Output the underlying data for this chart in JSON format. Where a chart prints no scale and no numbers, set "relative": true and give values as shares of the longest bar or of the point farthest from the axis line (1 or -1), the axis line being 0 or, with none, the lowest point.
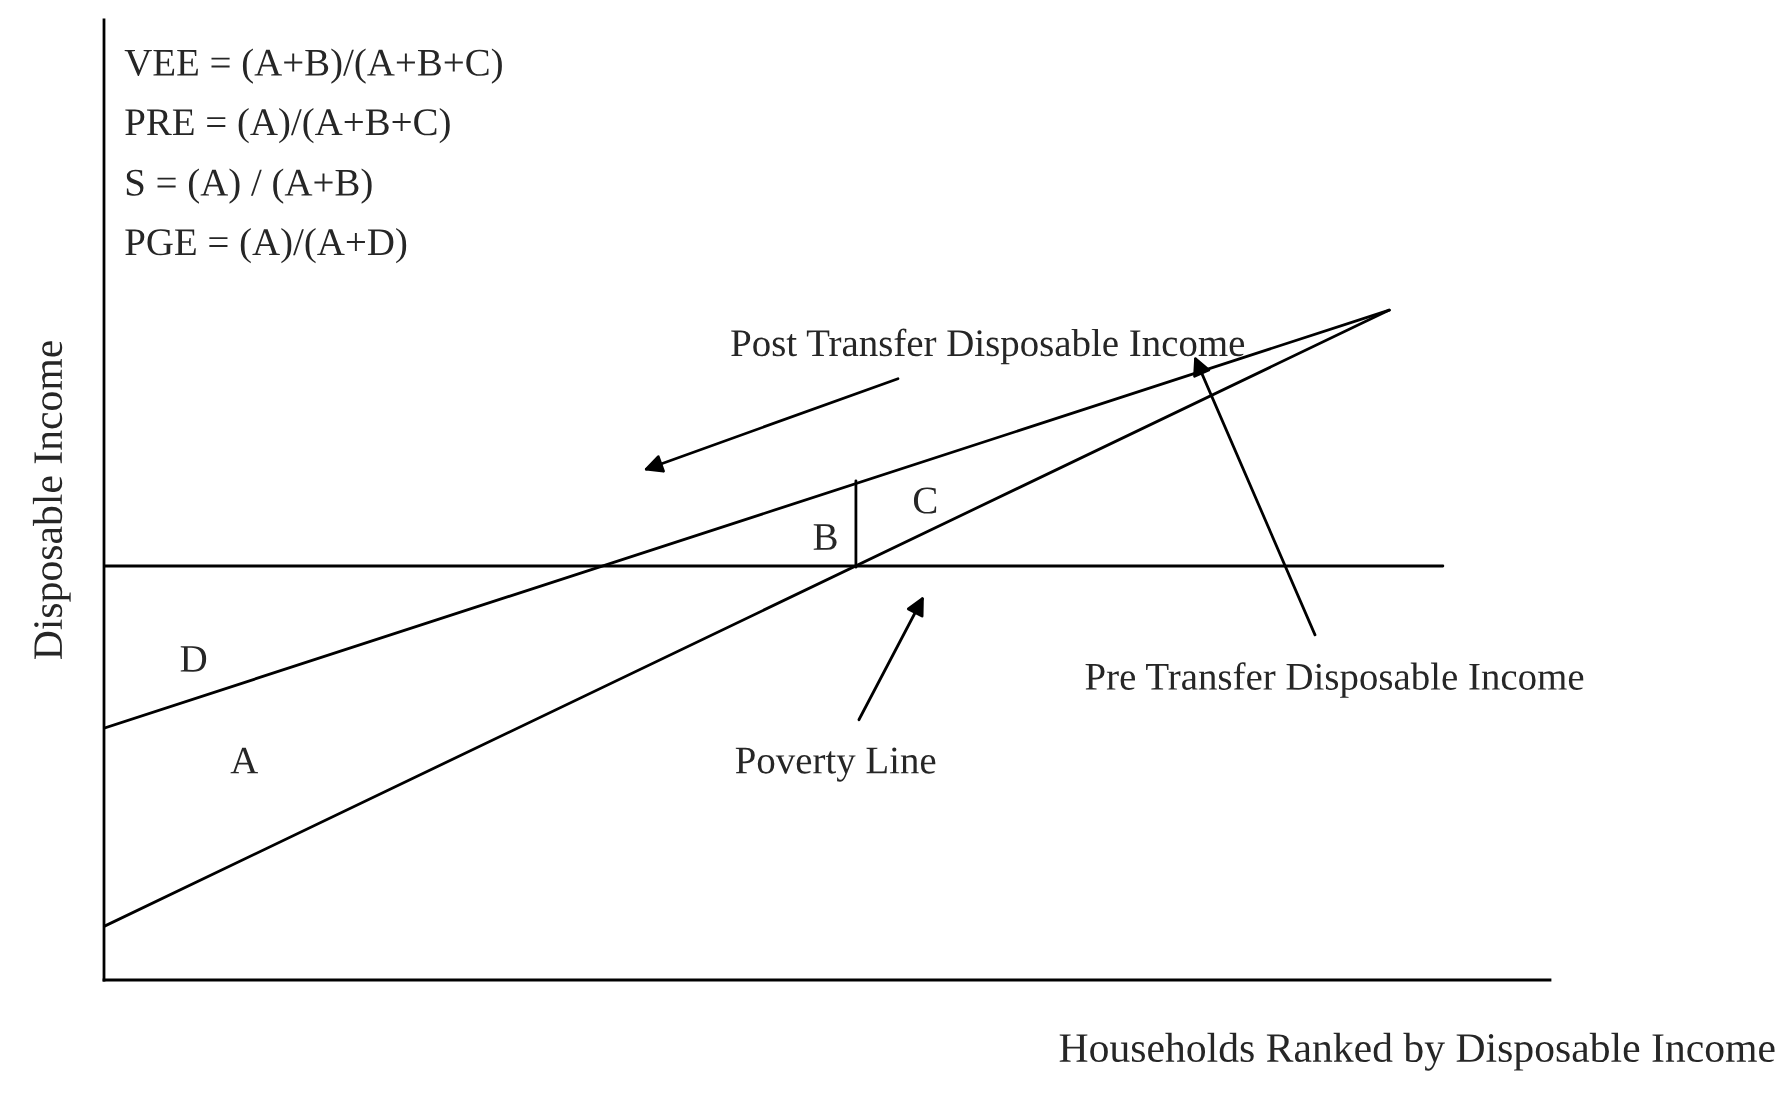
{
  "chart_data": {
    "type": "line",
    "relative": true,
    "xlabel": "Households Ranked by Disposable Income",
    "ylabel": "Disposable Income",
    "categories": [
      null,
      null,
      null,
      null,
      null,
      null,
      null,
      null,
      null,
      null,
      null,
      null,
      null,
      null,
      null,
      null,
      null,
      null,
      null,
      null,
      null,
      null,
      null,
      null,
      null,
      null,
      null,
      null
    ],
    "series": [
      {
        "color": "#000000",
        "values": [
          0.08,
          null,
          null,
          null,
          null,
          null,
          null,
          null,
          null,
          null,
          null,
          null,
          null,
          null,
          null,
          null,
          null,
          null,
          null,
          null,
          null,
          null,
          null,
          null,
          1.0,
          null,
          null,
          null
        ]
      },
      {
        "color": "#000000",
        "values": [
          0.376,
          null,
          null,
          null,
          null,
          null,
          null,
          null,
          null,
          null,
          null,
          null,
          null,
          null,
          null,
          null,
          null,
          null,
          null,
          null,
          null,
          null,
          null,
          null,
          1.0,
          null,
          null,
          null
        ]
      },
      {
        "color": "#000000",
        "values": [
          0.618,
          null,
          null,
          null,
          null,
          null,
          null,
          null,
          null,
          null,
          null,
          null,
          null,
          null,
          null,
          null,
          null,
          null,
          null,
          null,
          null,
          null,
          null,
          null,
          null,
          0.618,
          null,
          null
        ]
      }
    ],
    "annotations": [
      "VEE = (A+B)/(A+B+C)",
      "PRE = (A)/(A+B+C)",
      "S = (A) / (A+B)",
      "PGE = (A)/(A+D)",
      "Post Transfer Disposable Income",
      "B",
      "C",
      "D",
      "A",
      "Poverty Line",
      "Pre Transfer Disposable Income"
    ],
    "grid": false,
    "legend": false
  }
}
